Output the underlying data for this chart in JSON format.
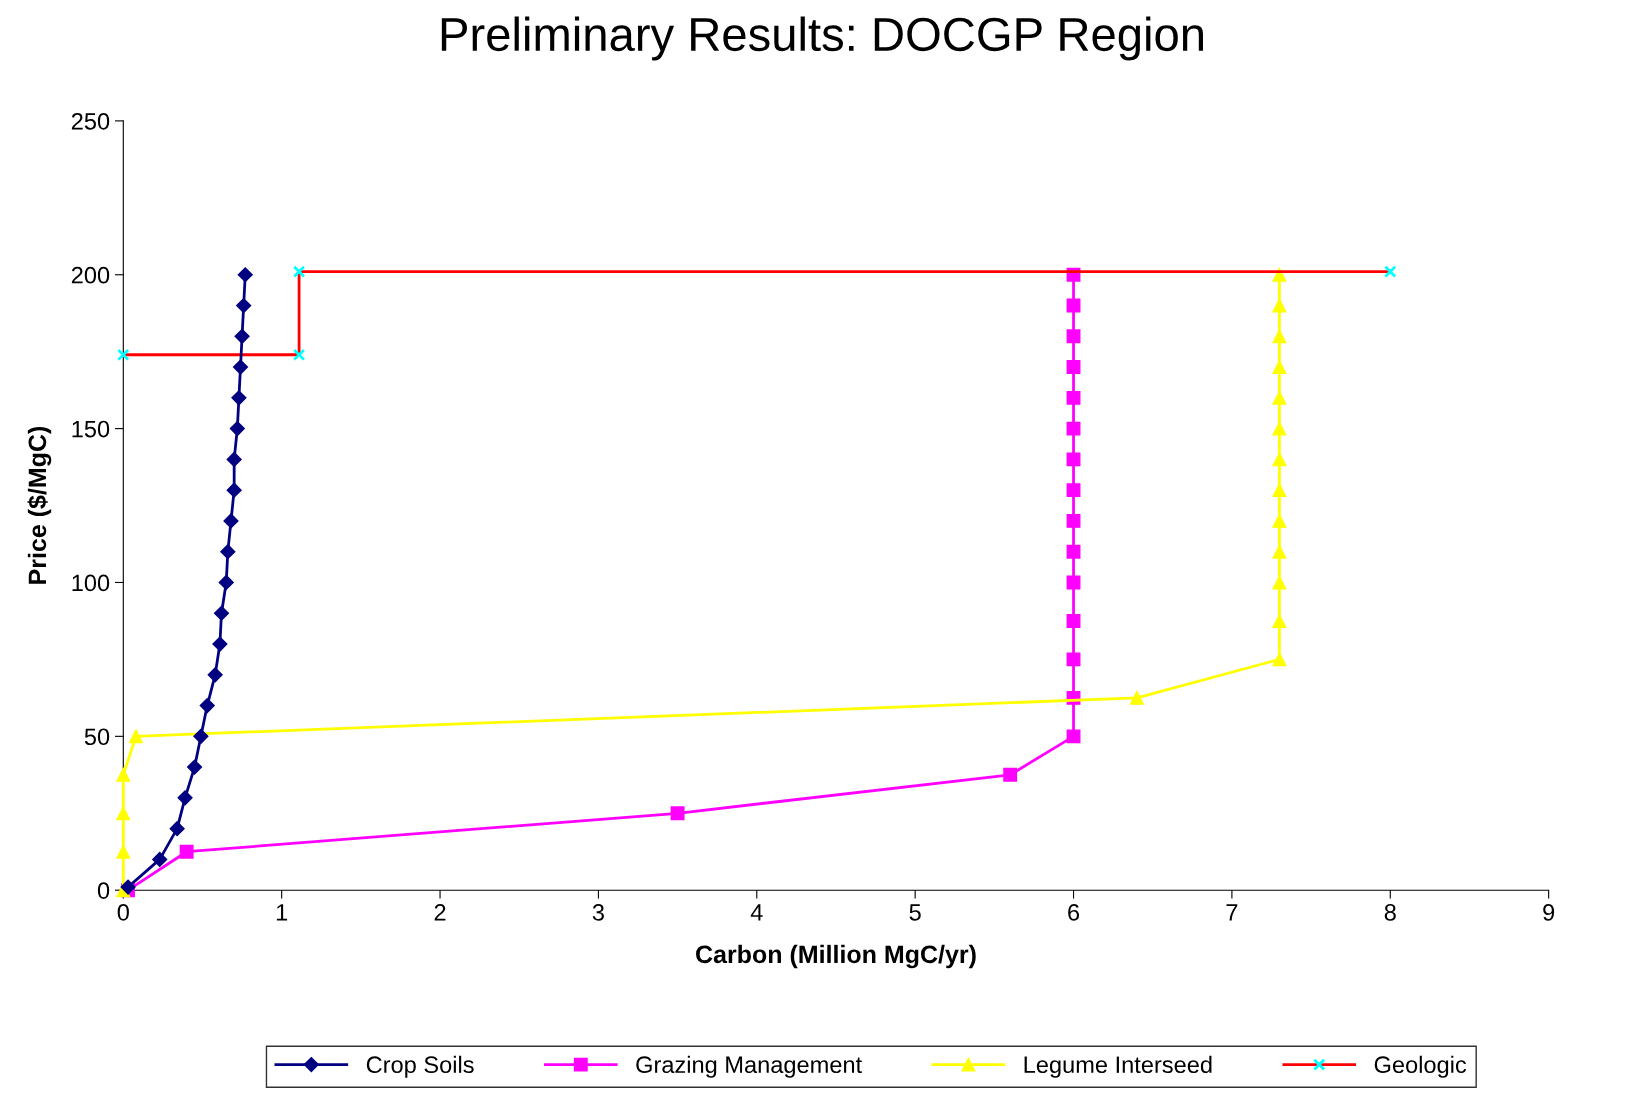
{
  "chart_data": {
    "type": "line",
    "title": "Preliminary Results: DOCGP Region",
    "xlabel": "Carbon (Million MgC/yr)",
    "ylabel": "Price ($/MgC)",
    "xlim": [
      0,
      9
    ],
    "xticks": [
      0,
      1,
      2,
      3,
      4,
      5,
      6,
      7,
      8,
      9
    ],
    "ylim": [
      0,
      250
    ],
    "yticks": [
      0,
      50,
      100,
      150,
      200,
      250
    ],
    "grid": false,
    "legend": "bottom",
    "line_style": "solid",
    "series": [
      {
        "name": "Crop Soils",
        "color": "#000080",
        "marker": "diamond",
        "x": [
          0.03,
          0.23,
          0.34,
          0.39,
          0.45,
          0.49,
          0.53,
          0.58,
          0.61,
          0.62,
          0.65,
          0.66,
          0.68,
          0.7,
          0.7,
          0.72,
          0.73,
          0.74,
          0.75,
          0.76,
          0.77
        ],
        "values": [
          1,
          10,
          20,
          30,
          40,
          50,
          60,
          70,
          80,
          90,
          100,
          110,
          120,
          130,
          140,
          150,
          160,
          170,
          180,
          190,
          200
        ]
      },
      {
        "name": "Grazing Management",
        "color": "#ff00ff",
        "marker": "square",
        "x": [
          0.03,
          0.4,
          3.5,
          5.6,
          6.0,
          6.0,
          6.0,
          6.0,
          6.0,
          6.0,
          6.0,
          6.0,
          6.0,
          6.0,
          6.0,
          6.0,
          6.0,
          6.0,
          6.0
        ],
        "values": [
          0,
          12.5,
          25,
          37.5,
          50,
          62.5,
          75,
          87.5,
          100,
          110,
          120,
          130,
          140,
          150,
          160,
          170,
          180,
          190,
          200
        ]
      },
      {
        "name": "Legume Interseed",
        "color": "#ffff00",
        "marker": "triangle",
        "x": [
          0,
          0,
          0,
          0,
          0.08,
          6.4,
          7.3,
          7.3,
          7.3,
          7.3,
          7.3,
          7.3,
          7.3,
          7.3,
          7.3,
          7.3,
          7.3,
          7.3,
          7.3
        ],
        "values": [
          0,
          12.5,
          25,
          37.5,
          50,
          62.5,
          75,
          87.5,
          100,
          110,
          120,
          130,
          140,
          150,
          160,
          170,
          180,
          190,
          200
        ]
      },
      {
        "name": "Geologic",
        "color": "#ff0000",
        "marker": "cross",
        "x": [
          0,
          1.11,
          1.11,
          8.0
        ],
        "values": [
          174,
          174,
          201,
          201
        ]
      }
    ]
  }
}
